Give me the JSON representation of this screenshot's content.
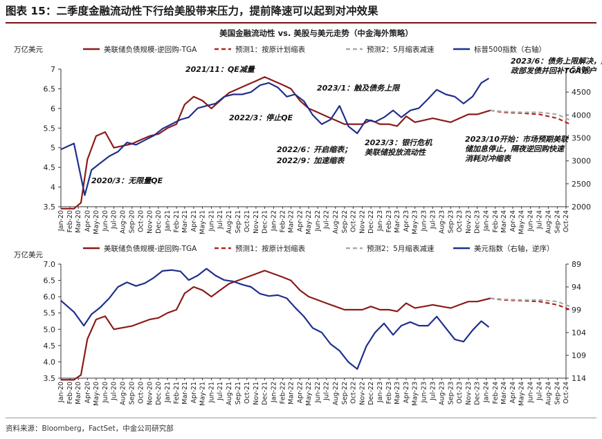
{
  "figure_title": "图表 15：二季度金融流动性下行给美股带来压力，提前降速可以起到对冲效果",
  "source_note": "资料来源：Bloomberg，FactSet，中金公司研究部",
  "colors": {
    "liquidity": "#8b1a1a",
    "forecast1": "#b22222",
    "forecast2": "#a9a9a9",
    "equity": "#1f2f8c",
    "rule": "#7a0f14"
  },
  "months": [
    "Jan-20",
    "Feb-20",
    "Mar-20",
    "Apr-20",
    "May-20",
    "Jun-20",
    "Jul-20",
    "Aug-20",
    "Sep-20",
    "Oct-20",
    "Nov-20",
    "Dec-20",
    "Jan-21",
    "Feb-21",
    "Mar-21",
    "Apr-21",
    "May-21",
    "Jun-21",
    "Jul-21",
    "Aug-21",
    "Sep-21",
    "Oct-21",
    "Nov-21",
    "Dec-21",
    "Jan-22",
    "Feb-22",
    "Mar-22",
    "Apr-22",
    "May-22",
    "Jun-22",
    "Jul-22",
    "Aug-22",
    "Sep-22",
    "Oct-22",
    "Nov-22",
    "Dec-22",
    "Jan-23",
    "Feb-23",
    "Mar-23",
    "Apr-23",
    "May-23",
    "Jun-23",
    "Jul-23",
    "Aug-23",
    "Sep-23",
    "Oct-23",
    "Nov-23",
    "Dec-23",
    "Jan-24",
    "Feb-24",
    "Mar-24",
    "Apr-24",
    "May-24",
    "Jun-24",
    "Jul-24",
    "Aug-24",
    "Sep-24",
    "Oct-24"
  ],
  "chart_data": [
    {
      "type": "line",
      "title": "美国金融流动性 vs. 美股与美元走势（中金海外策略）",
      "ylabel": "万亿美元",
      "ylim": [
        3.5,
        7
      ],
      "y_ticks": [
        "3.5",
        "4",
        "4.5",
        "5",
        "5.5",
        "6",
        "6.5",
        "7"
      ],
      "y2lim": [
        2000,
        5000
      ],
      "y2_ticks": [
        "2000",
        "2500",
        "3000",
        "3500",
        "4000",
        "4500",
        "5000"
      ],
      "legend": [
        "美联储负债规模-逆回购-TGA",
        "预测1：按原计划缩表",
        "预测2：5月缩表减速",
        "标普500指数（右轴）"
      ],
      "series": [
        {
          "name": "美联储负债规模-逆回购-TGA",
          "axis": "left",
          "x": [
            "2020-01-01",
            "2020-02-15",
            "2020-03-10",
            "2020-04-01",
            "2020-05-01",
            "2020-06-01",
            "2020-07-01",
            "2020-08-01",
            "2020-09-01",
            "2020-10-01",
            "2020-11-01",
            "2020-12-01",
            "2021-01-01",
            "2021-02-01",
            "2021-03-01",
            "2021-04-01",
            "2021-05-01",
            "2021-06-01",
            "2021-07-01",
            "2021-08-01",
            "2021-09-01",
            "2021-10-01",
            "2021-11-01",
            "2021-12-01",
            "2022-01-01",
            "2022-02-01",
            "2022-03-01",
            "2022-04-01",
            "2022-05-01",
            "2022-06-01",
            "2022-07-01",
            "2022-08-01",
            "2022-09-01",
            "2022-10-01",
            "2022-11-01",
            "2022-12-01",
            "2023-01-01",
            "2023-02-01",
            "2023-03-01",
            "2023-04-01",
            "2023-05-01",
            "2023-06-01",
            "2023-07-01",
            "2023-08-01",
            "2023-09-01",
            "2023-10-01",
            "2023-11-01",
            "2023-12-01",
            "2024-01-15"
          ],
          "y": [
            3.45,
            3.45,
            3.6,
            4.7,
            5.3,
            5.4,
            5.0,
            5.05,
            5.1,
            5.2,
            5.3,
            5.35,
            5.5,
            5.6,
            6.1,
            6.3,
            6.2,
            6.0,
            6.2,
            6.4,
            6.5,
            6.6,
            6.7,
            6.8,
            6.7,
            6.6,
            6.5,
            6.2,
            6.0,
            5.9,
            5.8,
            5.7,
            5.6,
            5.6,
            5.6,
            5.7,
            5.6,
            5.6,
            5.55,
            5.8,
            5.65,
            5.7,
            5.75,
            5.7,
            5.65,
            5.75,
            5.85,
            5.85,
            5.95
          ]
        },
        {
          "name": "预测1：按原计划缩表",
          "axis": "left",
          "x": [
            "2024-01-15",
            "2024-03-01",
            "2024-05-01",
            "2024-07-01",
            "2024-09-01",
            "2024-10-15"
          ],
          "y": [
            5.95,
            5.9,
            5.88,
            5.85,
            5.75,
            5.6
          ]
        },
        {
          "name": "预测2：5月缩表减速",
          "axis": "left",
          "x": [
            "2024-01-15",
            "2024-03-01",
            "2024-05-01",
            "2024-07-01",
            "2024-09-01",
            "2024-10-15"
          ],
          "y": [
            5.95,
            5.92,
            5.9,
            5.9,
            5.85,
            5.7
          ]
        },
        {
          "name": "标普500指数（右轴）",
          "axis": "right",
          "x": [
            "2020-01-01",
            "2020-02-15",
            "2020-03-23",
            "2020-04-15",
            "2020-05-15",
            "2020-06-15",
            "2020-07-15",
            "2020-08-15",
            "2020-09-15",
            "2020-10-15",
            "2020-11-15",
            "2020-12-15",
            "2021-01-15",
            "2021-02-15",
            "2021-03-15",
            "2021-04-15",
            "2021-05-15",
            "2021-06-15",
            "2021-07-15",
            "2021-08-15",
            "2021-09-15",
            "2021-10-15",
            "2021-11-15",
            "2021-12-15",
            "2022-01-15",
            "2022-02-15",
            "2022-03-15",
            "2022-04-15",
            "2022-05-15",
            "2022-06-15",
            "2022-07-15",
            "2022-08-15",
            "2022-09-15",
            "2022-10-15",
            "2022-11-15",
            "2022-12-15",
            "2023-01-15",
            "2023-02-15",
            "2023-03-15",
            "2023-04-15",
            "2023-05-15",
            "2023-06-15",
            "2023-07-15",
            "2023-08-15",
            "2023-09-15",
            "2023-10-15",
            "2023-11-15",
            "2023-12-15",
            "2024-01-10"
          ],
          "y": [
            3250,
            3380,
            2250,
            2800,
            2950,
            3100,
            3200,
            3400,
            3350,
            3450,
            3550,
            3700,
            3800,
            3900,
            3950,
            4150,
            4200,
            4250,
            4400,
            4450,
            4450,
            4500,
            4650,
            4700,
            4600,
            4400,
            4450,
            4300,
            4000,
            3800,
            3900,
            4200,
            3750,
            3600,
            3900,
            3850,
            3950,
            4100,
            3950,
            4100,
            4150,
            4350,
            4550,
            4450,
            4400,
            4250,
            4400,
            4700,
            4800
          ]
        }
      ],
      "annotations": [
        "2021/11：QE减量",
        "2023/1：触及债务上限",
        "2023/6：债务上限解决，财政部发债并回补TGA账户",
        "2022/3：停止QE",
        "2022/6：开启缩表；",
        "2022/9：加速缩表",
        "2023/3：银行危机美联储投放流动性",
        "2023/10开始：市场预期美联储加息停止，隔夜逆回购快速消耗对冲缩表",
        "2020/3：无限量QE"
      ]
    },
    {
      "type": "line",
      "ylabel": "万亿美元",
      "ylim": [
        3.5,
        7.0
      ],
      "y_ticks": [
        "3.5",
        "4.0",
        "4.5",
        "5.0",
        "5.5",
        "6.0",
        "6.5",
        "7.0"
      ],
      "y2lim": [
        114,
        89
      ],
      "y2_inverted": true,
      "y2_ticks": [
        "89",
        "94",
        "99",
        "104",
        "109",
        "114"
      ],
      "legend": [
        "美联储负债规模-逆回购-TGA",
        "预测1：按原计划缩表",
        "预测2：5月缩表减速",
        "美元指数（右轴，逆序）"
      ],
      "series": [
        {
          "name": "美联储负债规模-逆回购-TGA",
          "axis": "left",
          "x": [
            "2020-01-01",
            "2020-02-15",
            "2020-03-10",
            "2020-04-01",
            "2020-05-01",
            "2020-06-01",
            "2020-07-01",
            "2020-08-01",
            "2020-09-01",
            "2020-10-01",
            "2020-11-01",
            "2020-12-01",
            "2021-01-01",
            "2021-02-01",
            "2021-03-01",
            "2021-04-01",
            "2021-05-01",
            "2021-06-01",
            "2021-07-01",
            "2021-08-01",
            "2021-09-01",
            "2021-10-01",
            "2021-11-01",
            "2021-12-01",
            "2022-01-01",
            "2022-02-01",
            "2022-03-01",
            "2022-04-01",
            "2022-05-01",
            "2022-06-01",
            "2022-07-01",
            "2022-08-01",
            "2022-09-01",
            "2022-10-01",
            "2022-11-01",
            "2022-12-01",
            "2023-01-01",
            "2023-02-01",
            "2023-03-01",
            "2023-04-01",
            "2023-05-01",
            "2023-06-01",
            "2023-07-01",
            "2023-08-01",
            "2023-09-01",
            "2023-10-01",
            "2023-11-01",
            "2023-12-01",
            "2024-01-15"
          ],
          "y": [
            3.45,
            3.45,
            3.6,
            4.7,
            5.3,
            5.4,
            5.0,
            5.05,
            5.1,
            5.2,
            5.3,
            5.35,
            5.5,
            5.6,
            6.1,
            6.3,
            6.2,
            6.0,
            6.2,
            6.4,
            6.5,
            6.6,
            6.7,
            6.8,
            6.7,
            6.6,
            6.5,
            6.2,
            6.0,
            5.9,
            5.8,
            5.7,
            5.6,
            5.6,
            5.6,
            5.7,
            5.6,
            5.6,
            5.55,
            5.8,
            5.65,
            5.7,
            5.75,
            5.7,
            5.65,
            5.75,
            5.85,
            5.85,
            5.95
          ]
        },
        {
          "name": "预测1：按原计划缩表",
          "axis": "left",
          "x": [
            "2024-01-15",
            "2024-03-01",
            "2024-05-01",
            "2024-07-01",
            "2024-09-01",
            "2024-10-15"
          ],
          "y": [
            5.95,
            5.9,
            5.88,
            5.85,
            5.75,
            5.6
          ]
        },
        {
          "name": "预测2：5月缩表减速",
          "axis": "left",
          "x": [
            "2024-01-15",
            "2024-03-01",
            "2024-05-01",
            "2024-07-01",
            "2024-09-01",
            "2024-10-15"
          ],
          "y": [
            5.95,
            5.92,
            5.9,
            5.9,
            5.85,
            5.7
          ]
        },
        {
          "name": "美元指数（右轴，逆序）",
          "axis": "right",
          "x": [
            "2020-01-01",
            "2020-02-15",
            "2020-03-20",
            "2020-04-15",
            "2020-05-15",
            "2020-06-15",
            "2020-07-15",
            "2020-08-15",
            "2020-09-15",
            "2020-10-15",
            "2020-11-15",
            "2020-12-15",
            "2021-01-15",
            "2021-02-15",
            "2021-03-15",
            "2021-04-15",
            "2021-05-15",
            "2021-06-15",
            "2021-07-15",
            "2021-08-15",
            "2021-09-15",
            "2021-10-15",
            "2021-11-15",
            "2021-12-15",
            "2022-01-15",
            "2022-02-15",
            "2022-03-15",
            "2022-04-15",
            "2022-05-15",
            "2022-06-15",
            "2022-07-15",
            "2022-08-15",
            "2022-09-15",
            "2022-10-15",
            "2022-11-15",
            "2022-12-15",
            "2023-01-15",
            "2023-02-15",
            "2023-03-15",
            "2023-04-15",
            "2023-05-15",
            "2023-06-15",
            "2023-07-15",
            "2023-08-15",
            "2023-09-15",
            "2023-10-15",
            "2023-11-15",
            "2023-12-15",
            "2024-01-10"
          ],
          "y": [
            97,
            99.5,
            102.5,
            100,
            98.5,
            96.5,
            94,
            93,
            93.8,
            93.2,
            92,
            90.5,
            90.3,
            90.6,
            92.5,
            91.5,
            90,
            91.5,
            92.5,
            92.8,
            93.5,
            94,
            95.5,
            96,
            95.8,
            96.5,
            98.5,
            100.5,
            103,
            104,
            106.5,
            108,
            110.5,
            112,
            107,
            104,
            102,
            104.5,
            102.5,
            101.7,
            102.5,
            102.5,
            100.5,
            103,
            105.5,
            106,
            103.5,
            101.5,
            102.8
          ]
        }
      ]
    }
  ]
}
